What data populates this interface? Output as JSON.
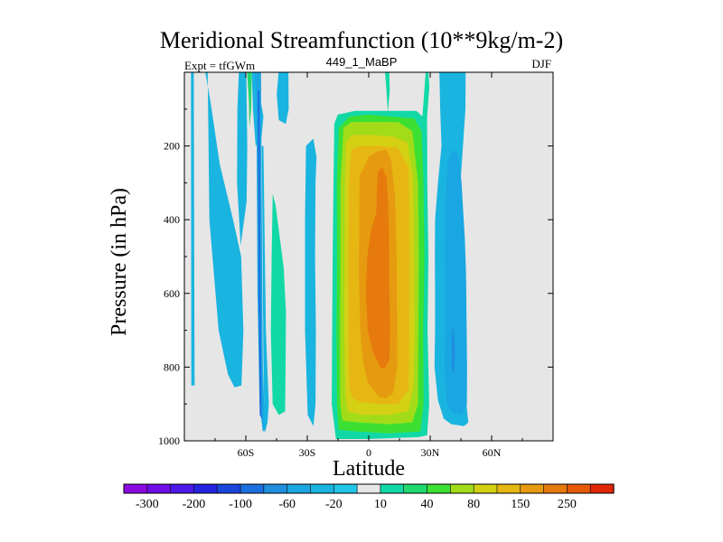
{
  "chart_data": {
    "type": "heatmap",
    "title": "Meridional Streamfunction (10**9kg/m-2)",
    "left_subtitle": "Expt = tfGWm",
    "center_subtitle": "449_1_MaBP",
    "right_subtitle": "DJF",
    "xlabel": "Latitude",
    "ylabel": "Pressure (in hPa)",
    "xlim": [
      -90,
      90
    ],
    "ylim": [
      1000,
      0
    ],
    "x_ticks": [
      -60,
      -30,
      0,
      30,
      60
    ],
    "x_tick_labels": [
      "60S",
      "30S",
      "0",
      "30N",
      "60N"
    ],
    "y_ticks": [
      200,
      400,
      600,
      800,
      1000
    ],
    "y_tick_labels": [
      "200",
      "400",
      "600",
      "800",
      "1000"
    ],
    "colorbar": {
      "colors": [
        "#8a0be0",
        "#6f0ee6",
        "#4d18e8",
        "#2424e0",
        "#1b46dc",
        "#1c6fe0",
        "#1f8fe0",
        "#1aa6e2",
        "#19b4e0",
        "#22c6e8",
        "#e6e6e6",
        "#12d8a6",
        "#20d870",
        "#3ce033",
        "#a2dc19",
        "#d4d014",
        "#e6b612",
        "#e69a10",
        "#e67a0c",
        "#e65a0a",
        "#e02808"
      ],
      "tick_labels": [
        "-300",
        "-200",
        "-100",
        "-60",
        "-20",
        "10",
        "40",
        "80",
        "150",
        "250"
      ]
    },
    "regions": [
      {
        "color": "#19b4e0",
        "points": [
          [
            -86.8,
            0
          ],
          [
            -85.4,
            0
          ],
          [
            -85,
            850
          ],
          [
            -86.6,
            850
          ]
        ]
      },
      {
        "color": "#19b4e0",
        "points": [
          [
            -79.8,
            0
          ],
          [
            -78.6,
            0
          ],
          [
            -77.8,
            400
          ],
          [
            -73.3,
            700
          ],
          [
            -68.7,
            820
          ],
          [
            -65.5,
            855
          ],
          [
            -62.1,
            850
          ],
          [
            -61.2,
            700
          ],
          [
            -62.3,
            500
          ],
          [
            -66.2,
            400
          ],
          [
            -72.7,
            250
          ],
          [
            -77.5,
            70
          ]
        ]
      },
      {
        "color": "#19b4e0",
        "points": [
          [
            -63.4,
            0
          ],
          [
            -59.8,
            0
          ],
          [
            -59.3,
            200
          ],
          [
            -59.6,
            350
          ],
          [
            -62.5,
            470
          ],
          [
            -64.3,
            300
          ],
          [
            -64.1,
            100
          ]
        ]
      },
      {
        "color": "#20d870",
        "points": [
          [
            -59.4,
            0
          ],
          [
            -57.1,
            0
          ],
          [
            -57.4,
            100
          ],
          [
            -58.2,
            150
          ],
          [
            -58.5,
            80
          ]
        ]
      },
      {
        "color": "#19b4e0",
        "points": [
          [
            -57.1,
            0
          ],
          [
            -55.2,
            0
          ],
          [
            -51.4,
            120
          ],
          [
            -52.4,
            180
          ],
          [
            -55.2,
            200
          ],
          [
            -56.5,
            100
          ]
        ]
      },
      {
        "color": "#1aa6e2",
        "points": [
          [
            -55.6,
            0
          ],
          [
            -52.6,
            0
          ],
          [
            -51.7,
            800
          ],
          [
            -50.5,
            970
          ],
          [
            -51.7,
            975
          ],
          [
            -53.3,
            900
          ],
          [
            -54.3,
            600
          ],
          [
            -54.8,
            100
          ]
        ]
      },
      {
        "color": "#1c6fe0",
        "points": [
          [
            -54.2,
            50
          ],
          [
            -53.3,
            50
          ],
          [
            -52.8,
            600
          ],
          [
            -52.3,
            940
          ],
          [
            -53.2,
            930
          ],
          [
            -53.7,
            600
          ]
        ]
      },
      {
        "color": "#19b4e0",
        "points": [
          [
            -52.2,
            200
          ],
          [
            -51.4,
            200
          ],
          [
            -50.2,
            700
          ],
          [
            -48.8,
            900
          ],
          [
            -49.4,
            950
          ],
          [
            -50.8,
            980
          ],
          [
            -51.4,
            800
          ]
        ]
      },
      {
        "color": "#12d8a6",
        "points": [
          [
            -46.9,
            330
          ],
          [
            -45.5,
            360
          ],
          [
            -41.5,
            530
          ],
          [
            -40.4,
            650
          ],
          [
            -40.6,
            800
          ],
          [
            -40.8,
            920
          ],
          [
            -43.9,
            930
          ],
          [
            -46.9,
            900
          ],
          [
            -47.8,
            700
          ],
          [
            -47.4,
            500
          ]
        ]
      },
      {
        "color": "#19b4e0",
        "points": [
          [
            -44,
            0
          ],
          [
            -39.2,
            0
          ],
          [
            -39.1,
            100
          ],
          [
            -40.5,
            140
          ],
          [
            -43.9,
            130
          ],
          [
            -44.9,
            60
          ]
        ]
      },
      {
        "color": "#19b4e0",
        "points": [
          [
            -30.6,
            200
          ],
          [
            -27.1,
            180
          ],
          [
            -25.5,
            230
          ],
          [
            -26,
            300
          ],
          [
            -26.2,
            500
          ],
          [
            -25.8,
            700
          ],
          [
            -26,
            900
          ],
          [
            -27,
            960
          ],
          [
            -29.8,
            930
          ],
          [
            -31.1,
            700
          ],
          [
            -31.1,
            400
          ]
        ]
      },
      {
        "color": "#12d8a6",
        "points": [
          [
            -16.8,
            140
          ],
          [
            -15.1,
            115
          ],
          [
            -6.7,
            105
          ],
          [
            10,
            105
          ],
          [
            23.3,
            105
          ],
          [
            26.2,
            120
          ],
          [
            27.8,
            0
          ],
          [
            29.1,
            0
          ],
          [
            29.6,
            40
          ],
          [
            28.5,
            120
          ],
          [
            28.6,
            300
          ],
          [
            29.1,
            500
          ],
          [
            28.7,
            700
          ],
          [
            29.5,
            900
          ],
          [
            28.5,
            985
          ],
          [
            24.2,
            990
          ],
          [
            0,
            995
          ],
          [
            -16,
            995
          ],
          [
            -18.1,
            900
          ],
          [
            -17.6,
            500
          ],
          [
            -17.2,
            300
          ]
        ]
      },
      {
        "color": "#12d8a6",
        "points": [
          [
            8,
            0
          ],
          [
            10,
            0
          ],
          [
            10.3,
            50
          ],
          [
            9.3,
            110
          ],
          [
            8.8,
            60
          ]
        ]
      },
      {
        "color": "#3ce033",
        "points": [
          [
            -14.6,
            150
          ],
          [
            -9.3,
            120
          ],
          [
            0,
            115
          ],
          [
            10,
            120
          ],
          [
            22.2,
            125
          ],
          [
            25.8,
            160
          ],
          [
            26.7,
            300
          ],
          [
            27.2,
            500
          ],
          [
            26.6,
            700
          ],
          [
            26.8,
            900
          ],
          [
            25.2,
            975
          ],
          [
            10,
            980
          ],
          [
            -5,
            975
          ],
          [
            -14.7,
            970
          ],
          [
            -15.5,
            900
          ],
          [
            -15.7,
            700
          ],
          [
            -15.5,
            500
          ],
          [
            -15.6,
            300
          ]
        ]
      },
      {
        "color": "#a2dc19",
        "points": [
          [
            -12.3,
            150
          ],
          [
            -8.4,
            135
          ],
          [
            2.2,
            135
          ],
          [
            14.4,
            135
          ],
          [
            21.3,
            160
          ],
          [
            24.1,
            300
          ],
          [
            24.5,
            500
          ],
          [
            24.2,
            700
          ],
          [
            24.1,
            900
          ],
          [
            21.2,
            950
          ],
          [
            10,
            955
          ],
          [
            -5,
            950
          ],
          [
            -12.8,
            945
          ],
          [
            -13.9,
            900
          ],
          [
            -14,
            700
          ],
          [
            -13.8,
            500
          ],
          [
            -13.8,
            300
          ]
        ]
      },
      {
        "color": "#d4d014",
        "points": [
          [
            -11.1,
            190
          ],
          [
            -8.1,
            170
          ],
          [
            1.1,
            170
          ],
          [
            12.3,
            175
          ],
          [
            18.7,
            190
          ],
          [
            21.6,
            280
          ],
          [
            22.3,
            500
          ],
          [
            22.4,
            700
          ],
          [
            21.9,
            850
          ],
          [
            19.3,
            920
          ],
          [
            10,
            930
          ],
          [
            -3.3,
            930
          ],
          [
            -10.3,
            920
          ],
          [
            -11.4,
            880
          ],
          [
            -11.9,
            700
          ],
          [
            -11.8,
            500
          ],
          [
            -11.6,
            300
          ]
        ]
      },
      {
        "color": "#e6b612",
        "points": [
          [
            -8.5,
            210
          ],
          [
            -3.9,
            200
          ],
          [
            5.9,
            200
          ],
          [
            14.2,
            205
          ],
          [
            19.5,
            260
          ],
          [
            19.8,
            500
          ],
          [
            19.8,
            700
          ],
          [
            19.4,
            860
          ],
          [
            14.4,
            900
          ],
          [
            5,
            900
          ],
          [
            -3.2,
            895
          ],
          [
            -8,
            885
          ],
          [
            -9.6,
            850
          ],
          [
            -9.9,
            700
          ],
          [
            -9.9,
            500
          ],
          [
            -9.6,
            300
          ]
        ]
      },
      {
        "color": "#e69a10",
        "points": [
          [
            -4.5,
            280
          ],
          [
            -2.4,
            260
          ],
          [
            0,
            230
          ],
          [
            4.3,
            215
          ],
          [
            8.6,
            210
          ],
          [
            10.9,
            240
          ],
          [
            12.8,
            330
          ],
          [
            13.6,
            500
          ],
          [
            13.8,
            650
          ],
          [
            13.9,
            800
          ],
          [
            11.9,
            870
          ],
          [
            8.3,
            885
          ],
          [
            4.8,
            880
          ],
          [
            -0.6,
            840
          ],
          [
            -2.5,
            790
          ],
          [
            -3.5,
            750
          ],
          [
            -4.1,
            700
          ],
          [
            -4.8,
            550
          ],
          [
            -4.6,
            400
          ]
        ]
      },
      {
        "color": "#e67a0c",
        "points": [
          [
            4.5,
            270
          ],
          [
            6.6,
            258
          ],
          [
            8.6,
            285
          ],
          [
            9.5,
            350
          ],
          [
            9.9,
            450
          ],
          [
            10.1,
            600
          ],
          [
            10.4,
            700
          ],
          [
            10.1,
            780
          ],
          [
            7.6,
            805
          ],
          [
            5.5,
            800
          ],
          [
            2.1,
            760
          ],
          [
            -0.5,
            700
          ],
          [
            -1.4,
            600
          ],
          [
            -0.7,
            500
          ],
          [
            1.1,
            430
          ],
          [
            3.7,
            380
          ],
          [
            4.1,
            300
          ]
        ]
      },
      {
        "color": "#19b4e0",
        "points": [
          [
            34.5,
            0
          ],
          [
            47.3,
            0
          ],
          [
            47.2,
            100
          ],
          [
            45.4,
            250
          ],
          [
            43.8,
            380
          ],
          [
            45.4,
            600
          ],
          [
            46.8,
            800
          ],
          [
            47.7,
            900
          ],
          [
            48.6,
            950
          ],
          [
            46.5,
            960
          ],
          [
            40.3,
            955
          ],
          [
            36.6,
            940
          ],
          [
            33.8,
            890
          ],
          [
            32.1,
            800
          ],
          [
            32.4,
            700
          ],
          [
            32.4,
            600
          ],
          [
            32.3,
            500
          ],
          [
            32.4,
            400
          ],
          [
            33.8,
            300
          ],
          [
            35.5,
            200
          ],
          [
            34.9,
            100
          ]
        ]
      },
      {
        "color": "#1aa6e2",
        "points": [
          [
            38.5,
            240
          ],
          [
            40.9,
            210
          ],
          [
            43.1,
            220
          ],
          [
            44.2,
            240
          ],
          [
            45.3,
            300
          ],
          [
            46.9,
            450
          ],
          [
            47.5,
            550
          ],
          [
            48,
            800
          ],
          [
            47.9,
            900
          ],
          [
            45.3,
            930
          ],
          [
            41.2,
            925
          ],
          [
            38.1,
            900
          ],
          [
            37,
            800
          ],
          [
            37.4,
            600
          ],
          [
            37.1,
            500
          ],
          [
            37.3,
            400
          ],
          [
            37.9,
            300
          ]
        ]
      },
      {
        "color": "#1f8fe0",
        "points": [
          [
            40.3,
            730
          ],
          [
            41.4,
            685
          ],
          [
            42.2,
            760
          ],
          [
            41.5,
            820
          ],
          [
            40.6,
            800
          ]
        ]
      }
    ]
  }
}
